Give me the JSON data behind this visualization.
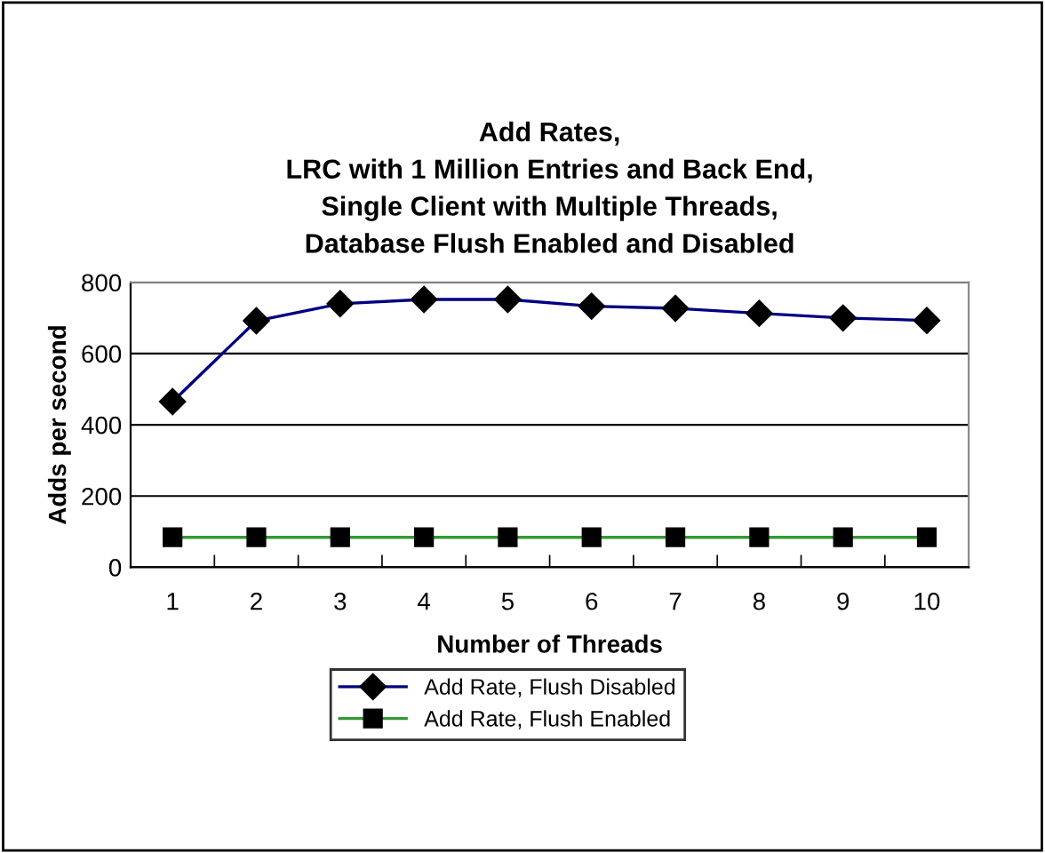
{
  "chart_data": {
    "type": "line",
    "title": "Add Rates,\nLRC with 1 Million Entries and Back End,\nSingle Client with Multiple Threads,\nDatabase Flush Enabled and Disabled",
    "xlabel": "Number of Threads",
    "ylabel": "Adds per second",
    "categories": [
      "1",
      "2",
      "3",
      "4",
      "5",
      "6",
      "7",
      "8",
      "9",
      "10"
    ],
    "series": [
      {
        "name": "Add Rate, Flush Disabled",
        "color": "#000080",
        "marker": "diamond",
        "values": [
          465,
          692,
          740,
          752,
          752,
          733,
          727,
          713,
          700,
          693
        ]
      },
      {
        "name": "Add Rate, Flush Enabled",
        "color": "#339933",
        "marker": "square",
        "values": [
          84,
          84,
          84,
          84,
          84,
          84,
          84,
          84,
          84,
          84
        ]
      }
    ],
    "ylim": [
      0,
      800
    ],
    "yticks": [
      0,
      200,
      400,
      600,
      800
    ],
    "grid": "y",
    "legend": "bottom"
  }
}
